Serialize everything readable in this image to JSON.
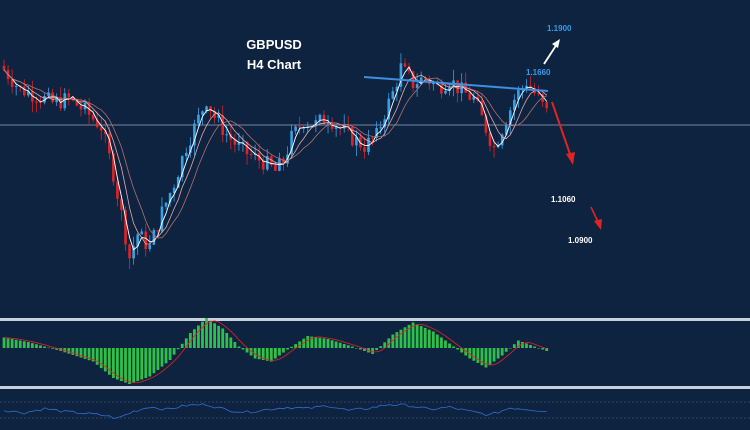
{
  "colors": {
    "background": "#0d2340",
    "bull_candle": "#3aa0e6",
    "bear_candle": "#e02424",
    "trendline": "#3d8fe0",
    "up_arrow": "#ffffff",
    "down_arrow": "#e02424",
    "macd_bars": "#2fbf4a",
    "rsi_line": "#2f6fd0",
    "separator": "#c8d0dc"
  },
  "chart_data": [
    {
      "type": "candlestick",
      "title": "GBPUSD",
      "subtitle": "H4 Chart",
      "grid": false,
      "ylim": [
        1.1,
        1.165
      ],
      "close_path": [
        [
          0,
          1.162
        ],
        [
          4,
          1.157
        ],
        [
          8,
          1.1555
        ],
        [
          12,
          1.1535
        ],
        [
          16,
          1.1545
        ],
        [
          20,
          1.1515
        ],
        [
          24,
          1.1475
        ],
        [
          27,
          1.1355
        ],
        [
          29,
          1.125
        ],
        [
          31,
          1.114
        ],
        [
          33,
          1.12
        ],
        [
          36,
          1.1165
        ],
        [
          39,
          1.1255
        ],
        [
          42,
          1.133
        ],
        [
          45,
          1.1425
        ],
        [
          48,
          1.1495
        ],
        [
          50,
          1.1545
        ],
        [
          52,
          1.15
        ],
        [
          55,
          1.1455
        ],
        [
          58,
          1.142
        ],
        [
          61,
          1.14
        ],
        [
          64,
          1.1385
        ],
        [
          67,
          1.136
        ],
        [
          69,
          1.1385
        ],
        [
          71,
          1.1445
        ],
        [
          74,
          1.149
        ],
        [
          77,
          1.148
        ],
        [
          80,
          1.15
        ],
        [
          83,
          1.147
        ],
        [
          86,
          1.1445
        ],
        [
          89,
          1.1425
        ],
        [
          92,
          1.145
        ],
        [
          94,
          1.151
        ],
        [
          96,
          1.156
        ],
        [
          98,
          1.1625
        ],
        [
          101,
          1.1585
        ],
        [
          104,
          1.16
        ],
        [
          107,
          1.1575
        ],
        [
          110,
          1.1595
        ],
        [
          113,
          1.1565
        ],
        [
          116,
          1.1545
        ],
        [
          119,
          1.147
        ],
        [
          121,
          1.142
        ],
        [
          123,
          1.147
        ],
        [
          126,
          1.1545
        ],
        [
          129,
          1.159
        ],
        [
          132,
          1.1545
        ],
        [
          134,
          1.151
        ]
      ],
      "levels": [
        "1.1900",
        "1.1660",
        "1.1060",
        "1.0900"
      ]
    },
    {
      "type": "bar",
      "name": "macd",
      "envelope_path": [
        [
          0,
          0.35
        ],
        [
          6,
          0.2
        ],
        [
          14,
          -0.1
        ],
        [
          22,
          -0.45
        ],
        [
          27,
          -1.0
        ],
        [
          31,
          -1.2
        ],
        [
          36,
          -0.95
        ],
        [
          41,
          -0.4
        ],
        [
          46,
          0.5
        ],
        [
          50,
          1.0
        ],
        [
          54,
          0.65
        ],
        [
          58,
          0.05
        ],
        [
          62,
          -0.35
        ],
        [
          66,
          -0.45
        ],
        [
          70,
          -0.05
        ],
        [
          75,
          0.4
        ],
        [
          80,
          0.3
        ],
        [
          86,
          0.05
        ],
        [
          91,
          -0.2
        ],
        [
          96,
          0.45
        ],
        [
          101,
          0.85
        ],
        [
          106,
          0.55
        ],
        [
          111,
          0.05
        ],
        [
          115,
          -0.35
        ],
        [
          119,
          -0.65
        ],
        [
          123,
          -0.25
        ],
        [
          127,
          0.25
        ],
        [
          130,
          0.1
        ],
        [
          134,
          -0.1
        ]
      ]
    },
    {
      "type": "line",
      "name": "rsi",
      "envelope_path": [
        [
          0,
          50
        ],
        [
          5,
          40
        ],
        [
          10,
          55
        ],
        [
          15,
          44
        ],
        [
          20,
          38
        ],
        [
          25,
          30
        ],
        [
          28,
          20
        ],
        [
          32,
          45
        ],
        [
          36,
          62
        ],
        [
          40,
          52
        ],
        [
          45,
          66
        ],
        [
          50,
          70
        ],
        [
          55,
          50
        ],
        [
          60,
          42
        ],
        [
          65,
          52
        ],
        [
          70,
          60
        ],
        [
          75,
          55
        ],
        [
          80,
          66
        ],
        [
          85,
          48
        ],
        [
          90,
          56
        ],
        [
          95,
          70
        ],
        [
          100,
          66
        ],
        [
          105,
          52
        ],
        [
          110,
          60
        ],
        [
          115,
          45
        ],
        [
          120,
          32
        ],
        [
          125,
          58
        ],
        [
          130,
          52
        ],
        [
          134,
          45
        ]
      ]
    }
  ]
}
